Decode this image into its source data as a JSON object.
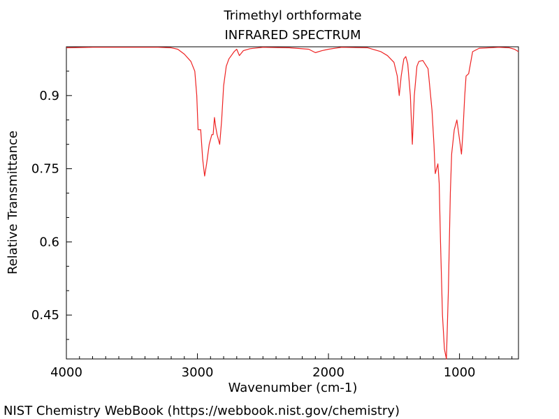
{
  "chart_data": {
    "type": "line",
    "title": "Trimethyl orthformate",
    "subtitle": "INFRARED SPECTRUM",
    "x_label": "Wavenumber (cm-1)",
    "y_label": "Relative Transmittance",
    "footer": "NIST Chemistry WebBook (https://webbook.nist.gov/chemistry)",
    "xlim": [
      4000,
      550
    ],
    "ylim": [
      0.36,
      1.0
    ],
    "xticks": [
      4000,
      3000,
      2000,
      1000
    ],
    "yticks": [
      0.45,
      0.6,
      0.75,
      0.9
    ],
    "xminorticks": [
      3900,
      3800,
      3700,
      3600,
      3500,
      3400,
      3300,
      3200,
      3100,
      2900,
      2800,
      2700,
      2600,
      2500,
      2400,
      2300,
      2200,
      2100,
      1900,
      1800,
      1700,
      1600,
      1500,
      1400,
      1300,
      1200,
      1100,
      900,
      800,
      700,
      600
    ],
    "yminorticks": [
      0.4,
      0.5,
      0.55,
      0.65,
      0.7,
      0.8,
      0.85,
      0.95
    ],
    "series": [
      {
        "color": "#ee2222",
        "x": [
          4000,
          3800,
          3500,
          3300,
          3200,
          3150,
          3100,
          3050,
          3020,
          3005,
          2995,
          2975,
          2960,
          2945,
          2930,
          2910,
          2890,
          2880,
          2870,
          2860,
          2850,
          2840,
          2830,
          2815,
          2800,
          2780,
          2760,
          2720,
          2700,
          2680,
          2650,
          2600,
          2500,
          2300,
          2150,
          2100,
          2050,
          2000,
          1900,
          1700,
          1600,
          1550,
          1500,
          1475,
          1460,
          1445,
          1425,
          1410,
          1395,
          1375,
          1360,
          1345,
          1325,
          1310,
          1280,
          1240,
          1210,
          1195,
          1185,
          1175,
          1165,
          1155,
          1145,
          1130,
          1115,
          1100,
          1085,
          1070,
          1060,
          1040,
          1020,
          1005,
          995,
          985,
          975,
          960,
          950,
          930,
          910,
          900,
          850,
          700,
          620,
          580,
          550
        ],
        "values": [
          0.998,
          0.999,
          0.999,
          0.999,
          0.998,
          0.995,
          0.985,
          0.97,
          0.95,
          0.9,
          0.83,
          0.83,
          0.77,
          0.735,
          0.76,
          0.8,
          0.82,
          0.82,
          0.855,
          0.835,
          0.82,
          0.81,
          0.8,
          0.85,
          0.92,
          0.96,
          0.975,
          0.99,
          0.995,
          0.982,
          0.992,
          0.996,
          0.999,
          0.998,
          0.995,
          0.988,
          0.992,
          0.995,
          0.999,
          0.998,
          0.99,
          0.982,
          0.968,
          0.94,
          0.9,
          0.94,
          0.975,
          0.98,
          0.965,
          0.9,
          0.8,
          0.9,
          0.96,
          0.97,
          0.972,
          0.955,
          0.87,
          0.8,
          0.74,
          0.75,
          0.76,
          0.72,
          0.6,
          0.45,
          0.38,
          0.36,
          0.5,
          0.7,
          0.78,
          0.83,
          0.85,
          0.82,
          0.8,
          0.78,
          0.82,
          0.9,
          0.94,
          0.945,
          0.975,
          0.99,
          0.997,
          0.999,
          0.998,
          0.995,
          0.99
        ]
      }
    ]
  }
}
